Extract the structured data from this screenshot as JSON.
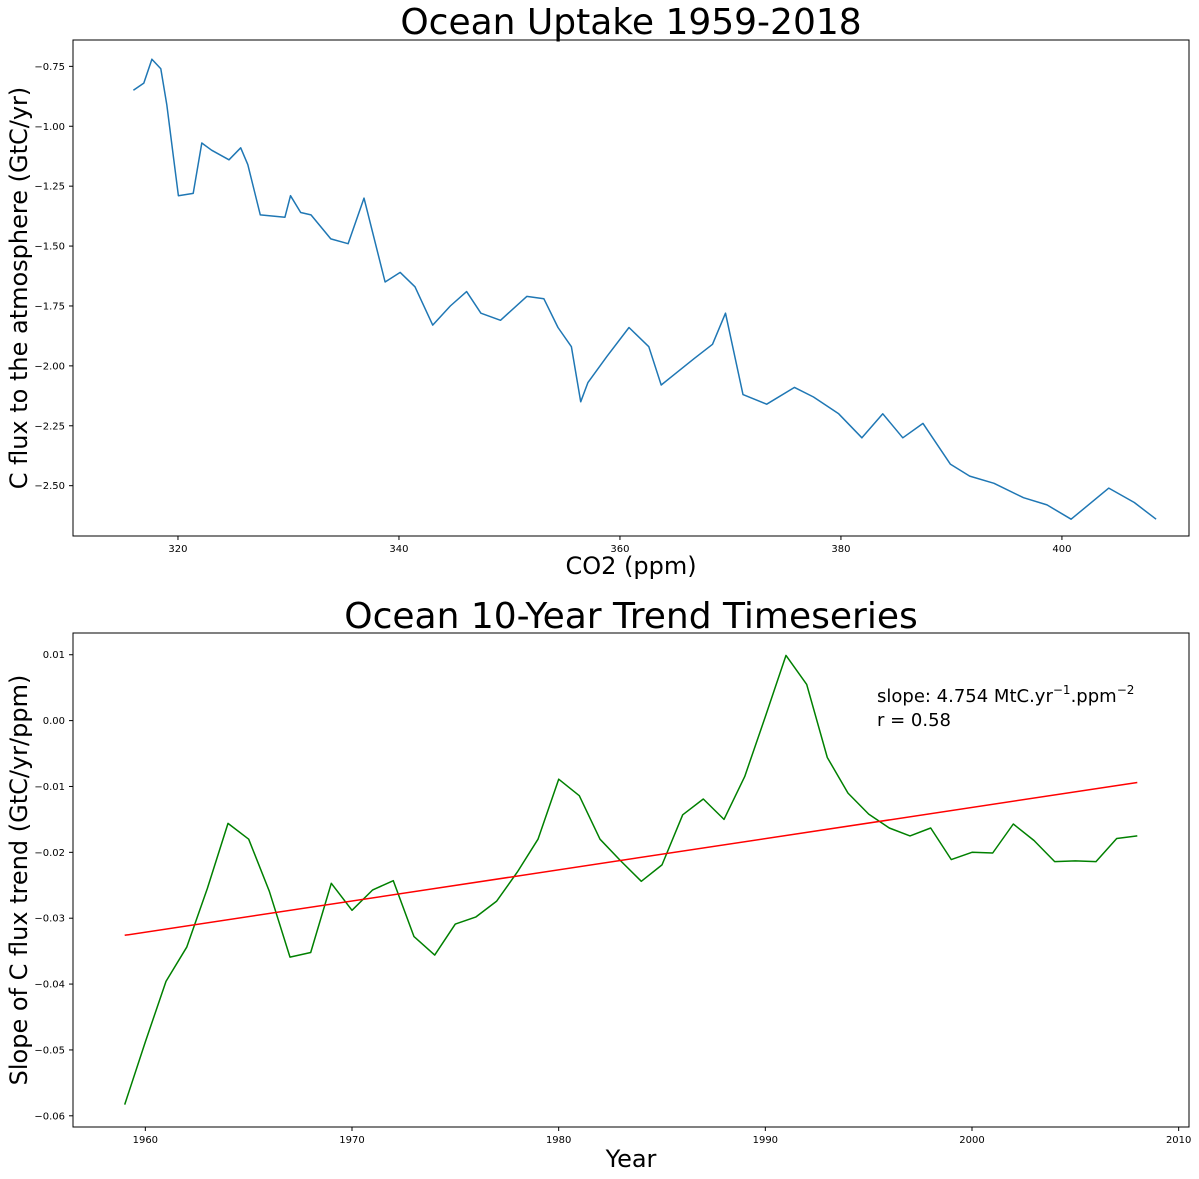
{
  "chart_data": [
    {
      "type": "line",
      "title": "Ocean Uptake 1959-2018",
      "xlabel": "CO2 (ppm)",
      "ylabel": "C flux to the atmosphere (GtC/yr)",
      "xlim": [
        310.5,
        411.5
      ],
      "ylim": [
        -2.71,
        -0.64
      ],
      "xticks": [
        320,
        340,
        360,
        380,
        400
      ],
      "yticks": [
        -0.75,
        -1.0,
        -1.25,
        -1.5,
        -1.75,
        -2.0,
        -2.25,
        -2.5
      ],
      "xtick_labels": [
        "320",
        "340",
        "360",
        "380",
        "400"
      ],
      "ytick_labels": [
        "−0.75",
        "−1.00",
        "−1.25",
        "−1.50",
        "−1.75",
        "−2.00",
        "−2.25",
        "−2.50"
      ],
      "grid": false,
      "series": [
        {
          "color": "#1f77b4",
          "x": [
            315.97,
            316.91,
            317.64,
            318.45,
            318.99,
            319.62,
            320.04,
            321.38,
            322.16,
            323.04,
            324.62,
            325.68,
            326.32,
            327.45,
            329.68,
            330.18,
            331.11,
            332.04,
            333.83,
            335.4,
            336.84,
            338.75,
            340.11,
            341.45,
            343.05,
            344.65,
            346.12,
            347.42,
            349.19,
            351.57,
            353.12,
            354.39,
            355.61,
            356.45,
            357.1,
            358.83,
            360.82,
            362.61,
            363.73,
            366.7,
            368.38,
            369.55,
            371.14,
            373.28,
            375.8,
            377.52,
            379.8,
            381.9,
            383.79,
            385.6,
            387.43,
            389.9,
            391.65,
            393.85,
            396.52,
            398.65,
            400.83,
            404.24,
            406.55,
            408.52
          ],
          "y": [
            -0.85,
            -0.82,
            -0.72,
            -0.76,
            -0.91,
            -1.14,
            -1.29,
            -1.28,
            -1.07,
            -1.1,
            -1.14,
            -1.09,
            -1.16,
            -1.37,
            -1.38,
            -1.29,
            -1.36,
            -1.37,
            -1.47,
            -1.49,
            -1.3,
            -1.65,
            -1.61,
            -1.67,
            -1.83,
            -1.75,
            -1.69,
            -1.78,
            -1.81,
            -1.71,
            -1.72,
            -1.84,
            -1.92,
            -2.15,
            -2.07,
            -1.96,
            -1.84,
            -1.92,
            -2.08,
            -1.97,
            -1.91,
            -1.78,
            -2.12,
            -2.16,
            -2.09,
            -2.13,
            -2.2,
            -2.3,
            -2.2,
            -2.3,
            -2.24,
            -2.41,
            -2.46,
            -2.49,
            -2.55,
            -2.58,
            -2.64,
            -2.51,
            -2.57,
            -2.64
          ]
        }
      ]
    },
    {
      "type": "line",
      "title": "Ocean 10-Year Trend Timeseries",
      "xlabel": "Year",
      "ylabel": "Slope of C flux trend (GtC/yr/ppm)",
      "xlim": [
        1956.5,
        2010.5
      ],
      "ylim": [
        -0.0617,
        0.0133
      ],
      "xticks": [
        1960,
        1970,
        1980,
        1990,
        2000,
        2010
      ],
      "yticks": [
        0.01,
        0.0,
        -0.01,
        -0.02,
        -0.03,
        -0.04,
        -0.05,
        -0.06
      ],
      "xtick_labels": [
        "1960",
        "1970",
        "1980",
        "1990",
        "2000",
        "2010"
      ],
      "ytick_labels": [
        "0.01",
        "0.00",
        "−0.01",
        "−0.02",
        "−0.03",
        "−0.04",
        "−0.05",
        "−0.06"
      ],
      "grid": false,
      "annotation": {
        "slope_label": "slope: 4.754 MtC.yr",
        "slope_exp1": "−1",
        "slope_unit2": ".ppm",
        "slope_exp2": "−2",
        "r_label": "r = 0.58"
      },
      "series": [
        {
          "color": "#008000",
          "x": [
            1959,
            1960,
            1961,
            1962,
            1963,
            1964,
            1965,
            1966,
            1967,
            1968,
            1969,
            1970,
            1971,
            1972,
            1973,
            1974,
            1975,
            1976,
            1977,
            1978,
            1979,
            1980,
            1981,
            1982,
            1983,
            1984,
            1985,
            1986,
            1987,
            1988,
            1989,
            1990,
            1991,
            1992,
            1993,
            1994,
            1995,
            1996,
            1997,
            1998,
            1999,
            2000,
            2001,
            2002,
            2003,
            2004,
            2005,
            2006,
            2007,
            2008
          ],
          "y": [
            -0.0583,
            -0.0488,
            -0.0396,
            -0.0344,
            -0.0255,
            -0.0156,
            -0.018,
            -0.0259,
            -0.0359,
            -0.0352,
            -0.0247,
            -0.0288,
            -0.0257,
            -0.0243,
            -0.0328,
            -0.0356,
            -0.0309,
            -0.0298,
            -0.0274,
            -0.023,
            -0.018,
            -0.0089,
            -0.0114,
            -0.018,
            -0.0213,
            -0.0244,
            -0.0219,
            -0.0143,
            -0.0119,
            -0.015,
            -0.0085,
            0.0006,
            0.0099,
            0.0055,
            -0.0056,
            -0.011,
            -0.0142,
            -0.0163,
            -0.0175,
            -0.0163,
            -0.0211,
            -0.02,
            -0.0201,
            -0.0157,
            -0.0182,
            -0.0214,
            -0.0213,
            -0.0214,
            -0.0179,
            -0.0175
          ]
        },
        {
          "color": "#ff0000",
          "x": [
            1959,
            2008
          ],
          "y": [
            -0.0326,
            -0.0094
          ]
        }
      ]
    }
  ]
}
